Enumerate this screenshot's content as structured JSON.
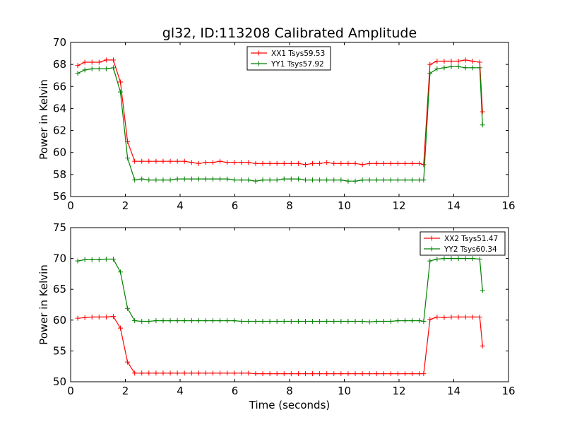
{
  "figure": {
    "title": "gl32, ID:113208 Calibrated Amplitude",
    "xlabel": "Time (seconds)",
    "ylabel": "Power in Kelvin"
  },
  "chart_data": [
    {
      "type": "line",
      "title": "gl32, ID:113208 Calibrated Amplitude",
      "xlabel": "",
      "ylabel": "Power in Kelvin",
      "xlim": [
        0,
        16
      ],
      "ylim": [
        56,
        70
      ],
      "xticks": [
        0,
        2,
        4,
        6,
        8,
        10,
        12,
        14,
        16
      ],
      "yticks": [
        56,
        58,
        60,
        62,
        64,
        66,
        68,
        70
      ],
      "grid": false,
      "legend": "top-center",
      "x": [
        0.26,
        0.52,
        0.78,
        1.04,
        1.3,
        1.56,
        1.82,
        2.08,
        2.34,
        2.6,
        2.86,
        3.12,
        3.38,
        3.64,
        3.9,
        4.16,
        4.42,
        4.68,
        4.94,
        5.2,
        5.46,
        5.72,
        5.98,
        6.24,
        6.5,
        6.76,
        7.02,
        7.28,
        7.54,
        7.8,
        8.06,
        8.32,
        8.58,
        8.84,
        9.1,
        9.36,
        9.62,
        9.88,
        10.14,
        10.4,
        10.66,
        10.92,
        11.18,
        11.44,
        11.7,
        11.96,
        12.22,
        12.48,
        12.74,
        12.9,
        13.13,
        13.39,
        13.65,
        13.91,
        14.17,
        14.43,
        14.69,
        14.95,
        15.05
      ],
      "series": [
        {
          "name": "XX1 Tsys59.53",
          "color": "#ff0000",
          "values": [
            67.9,
            68.2,
            68.2,
            68.2,
            68.4,
            68.4,
            66.4,
            61.0,
            59.2,
            59.2,
            59.2,
            59.2,
            59.2,
            59.2,
            59.2,
            59.2,
            59.1,
            59.0,
            59.1,
            59.1,
            59.2,
            59.1,
            59.1,
            59.1,
            59.1,
            59.0,
            59.0,
            59.0,
            59.0,
            59.0,
            59.0,
            59.0,
            58.9,
            59.0,
            59.0,
            59.1,
            59.0,
            59.0,
            59.0,
            59.0,
            58.9,
            59.0,
            59.0,
            59.0,
            59.0,
            59.0,
            59.0,
            59.0,
            59.0,
            58.9,
            68.0,
            68.3,
            68.3,
            68.3,
            68.3,
            68.4,
            68.3,
            68.2,
            63.7
          ]
        },
        {
          "name": "YY1 Tsys57.92",
          "color": "#008000",
          "values": [
            67.2,
            67.5,
            67.6,
            67.6,
            67.6,
            67.7,
            65.5,
            59.5,
            57.5,
            57.6,
            57.5,
            57.5,
            57.5,
            57.5,
            57.6,
            57.6,
            57.6,
            57.6,
            57.6,
            57.6,
            57.6,
            57.6,
            57.5,
            57.5,
            57.5,
            57.4,
            57.5,
            57.5,
            57.5,
            57.6,
            57.6,
            57.6,
            57.5,
            57.5,
            57.5,
            57.5,
            57.5,
            57.5,
            57.4,
            57.4,
            57.5,
            57.5,
            57.5,
            57.5,
            57.5,
            57.5,
            57.5,
            57.5,
            57.5,
            57.5,
            67.2,
            67.6,
            67.7,
            67.8,
            67.8,
            67.7,
            67.7,
            67.7,
            62.5
          ]
        }
      ]
    },
    {
      "type": "line",
      "title": "",
      "xlabel": "Time (seconds)",
      "ylabel": "Power in Kelvin",
      "xlim": [
        0,
        16
      ],
      "ylim": [
        50,
        75
      ],
      "xticks": [
        0,
        2,
        4,
        6,
        8,
        10,
        12,
        14,
        16
      ],
      "yticks": [
        50,
        55,
        60,
        65,
        70,
        75
      ],
      "grid": false,
      "legend": "top-right",
      "x": [
        0.26,
        0.52,
        0.78,
        1.04,
        1.3,
        1.56,
        1.82,
        2.08,
        2.34,
        2.6,
        2.86,
        3.12,
        3.38,
        3.64,
        3.9,
        4.16,
        4.42,
        4.68,
        4.94,
        5.2,
        5.46,
        5.72,
        5.98,
        6.24,
        6.5,
        6.76,
        7.02,
        7.28,
        7.54,
        7.8,
        8.06,
        8.32,
        8.58,
        8.84,
        9.1,
        9.36,
        9.62,
        9.88,
        10.14,
        10.4,
        10.66,
        10.92,
        11.18,
        11.44,
        11.7,
        11.96,
        12.22,
        12.48,
        12.74,
        12.9,
        13.13,
        13.39,
        13.65,
        13.91,
        14.17,
        14.43,
        14.69,
        14.95,
        15.05
      ],
      "series": [
        {
          "name": "XX2 Tsys51.47",
          "color": "#ff0000",
          "values": [
            60.3,
            60.4,
            60.5,
            60.5,
            60.5,
            60.6,
            58.7,
            53.2,
            51.4,
            51.4,
            51.4,
            51.4,
            51.4,
            51.4,
            51.4,
            51.4,
            51.4,
            51.4,
            51.4,
            51.4,
            51.4,
            51.4,
            51.4,
            51.4,
            51.4,
            51.3,
            51.3,
            51.3,
            51.3,
            51.3,
            51.3,
            51.3,
            51.3,
            51.3,
            51.3,
            51.3,
            51.3,
            51.3,
            51.3,
            51.3,
            51.3,
            51.3,
            51.3,
            51.3,
            51.3,
            51.3,
            51.3,
            51.3,
            51.3,
            51.3,
            60.1,
            60.5,
            60.4,
            60.5,
            60.5,
            60.5,
            60.5,
            60.5,
            55.8
          ]
        },
        {
          "name": "YY2 Tsys60.34",
          "color": "#008000",
          "values": [
            69.6,
            69.8,
            69.8,
            69.8,
            69.9,
            69.9,
            67.8,
            61.9,
            59.9,
            59.8,
            59.8,
            59.9,
            59.9,
            59.9,
            59.9,
            59.9,
            59.9,
            59.9,
            59.9,
            59.9,
            59.9,
            59.9,
            59.9,
            59.8,
            59.8,
            59.8,
            59.8,
            59.8,
            59.8,
            59.8,
            59.8,
            59.8,
            59.8,
            59.8,
            59.8,
            59.8,
            59.8,
            59.8,
            59.8,
            59.8,
            59.8,
            59.7,
            59.8,
            59.8,
            59.8,
            59.9,
            59.9,
            59.9,
            59.9,
            59.8,
            69.6,
            69.9,
            70.0,
            70.0,
            70.0,
            70.0,
            70.0,
            69.9,
            64.8
          ]
        }
      ]
    }
  ]
}
